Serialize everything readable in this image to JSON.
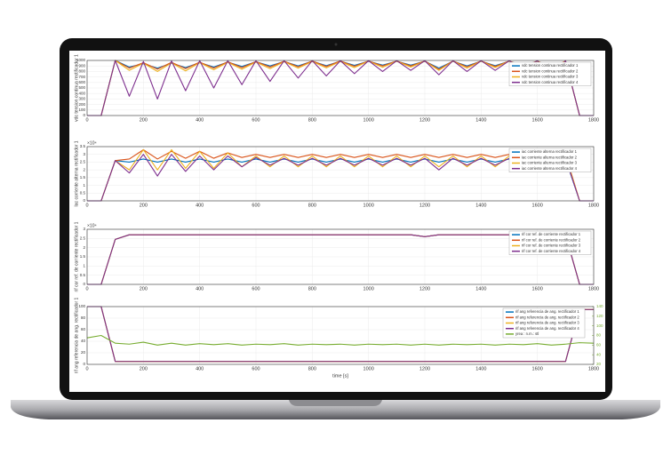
{
  "chart_data": [
    {
      "type": "line",
      "ylabel": "vdc tension continua rectificador 1",
      "x": [
        0,
        50,
        100,
        150,
        200,
        250,
        300,
        350,
        400,
        450,
        500,
        550,
        600,
        650,
        700,
        750,
        800,
        850,
        900,
        950,
        1000,
        1050,
        1100,
        1150,
        1200,
        1250,
        1300,
        1350,
        1400,
        1450,
        1500,
        1550,
        1600,
        1650,
        1700,
        1750,
        1800
      ],
      "xlim": [
        0,
        1800
      ],
      "xticks": [
        0,
        200,
        400,
        600,
        800,
        1000,
        1200,
        1400,
        1600,
        1800
      ],
      "ylim": [
        0,
        1000
      ],
      "yticks": [
        0,
        100,
        200,
        300,
        400,
        500,
        600,
        700,
        800,
        900,
        1000
      ],
      "grid": true,
      "legend": "upper right",
      "series": [
        {
          "name": "vdc tension continua rectificador 1",
          "color": "#0072bd",
          "values": [
            0,
            0,
            1000,
            880,
            940,
            860,
            950,
            870,
            960,
            880,
            970,
            890,
            975,
            900,
            980,
            900,
            985,
            905,
            985,
            910,
            985,
            915,
            985,
            915,
            985,
            860,
            985,
            900,
            985,
            905,
            985,
            910,
            985,
            880,
            985,
            0,
            0
          ]
        },
        {
          "name": "vdc tension continua rectificador 2",
          "color": "#d95319",
          "values": [
            0,
            0,
            1000,
            860,
            960,
            840,
            965,
            850,
            970,
            860,
            975,
            870,
            980,
            880,
            985,
            885,
            990,
            890,
            990,
            895,
            990,
            900,
            990,
            900,
            990,
            840,
            990,
            885,
            990,
            890,
            990,
            895,
            990,
            860,
            990,
            0,
            0
          ]
        },
        {
          "name": "vdc tension continua rectificador 3",
          "color": "#edb120",
          "values": [
            0,
            0,
            1000,
            820,
            950,
            800,
            955,
            810,
            960,
            830,
            965,
            840,
            970,
            850,
            975,
            860,
            980,
            865,
            980,
            870,
            985,
            875,
            985,
            880,
            985,
            820,
            985,
            860,
            985,
            870,
            985,
            875,
            985,
            840,
            985,
            0,
            0
          ]
        },
        {
          "name": "vdc tension continua rectificador 4",
          "color": "#7e2f8e",
          "values": [
            0,
            0,
            1000,
            350,
            980,
            300,
            990,
            450,
            995,
            500,
            995,
            560,
            995,
            620,
            995,
            680,
            995,
            720,
            995,
            760,
            995,
            800,
            995,
            820,
            995,
            740,
            995,
            800,
            995,
            820,
            995,
            840,
            995,
            700,
            995,
            0,
            0
          ]
        }
      ]
    },
    {
      "type": "line",
      "ylabel": "Iac corriente alterna rectificador 1",
      "y_exponent": "×10⁴",
      "x": [
        0,
        50,
        100,
        150,
        200,
        250,
        300,
        350,
        400,
        450,
        500,
        550,
        600,
        650,
        700,
        750,
        800,
        850,
        900,
        950,
        1000,
        1050,
        1100,
        1150,
        1200,
        1250,
        1300,
        1350,
        1400,
        1450,
        1500,
        1550,
        1600,
        1650,
        1700,
        1750,
        1800
      ],
      "xlim": [
        0,
        1800
      ],
      "xticks": [
        0,
        200,
        400,
        600,
        800,
        1000,
        1200,
        1400,
        1600,
        1800
      ],
      "ylim": [
        0,
        3.5
      ],
      "yticks": [
        0,
        0.5,
        1,
        1.5,
        2,
        2.5,
        3,
        3.5
      ],
      "grid": true,
      "legend": "upper right",
      "series": [
        {
          "name": "iac corriente alterna rectificador 1",
          "color": "#0072bd",
          "values": [
            0,
            0,
            2.6,
            2.5,
            2.7,
            2.5,
            2.7,
            2.5,
            2.7,
            2.5,
            2.7,
            2.5,
            2.7,
            2.5,
            2.7,
            2.5,
            2.7,
            2.5,
            2.7,
            2.5,
            2.7,
            2.5,
            2.7,
            2.5,
            2.7,
            2.5,
            2.7,
            2.5,
            2.7,
            2.5,
            2.7,
            2.5,
            2.7,
            2.5,
            2.7,
            0,
            0
          ]
        },
        {
          "name": "iac corriente alterna rectificador 2",
          "color": "#d95319",
          "values": [
            0,
            0,
            2.6,
            2.7,
            3.3,
            2.7,
            3.2,
            2.75,
            3.2,
            2.75,
            3.1,
            2.8,
            3.0,
            2.8,
            3.0,
            2.8,
            3.0,
            2.8,
            3.0,
            2.8,
            3.0,
            2.8,
            3.0,
            2.8,
            3.0,
            2.8,
            3.0,
            2.8,
            3.0,
            2.8,
            3.0,
            2.8,
            3.0,
            2.8,
            3.0,
            0,
            0
          ]
        },
        {
          "name": "iac corriente alterna rectificador 3",
          "color": "#edb120",
          "values": [
            0,
            0,
            2.6,
            2.0,
            3.3,
            2.0,
            3.3,
            2.1,
            3.2,
            2.1,
            3.1,
            2.2,
            2.9,
            2.2,
            2.9,
            2.2,
            2.9,
            2.2,
            2.9,
            2.2,
            2.9,
            2.2,
            2.9,
            2.2,
            2.9,
            2.2,
            2.9,
            2.2,
            2.9,
            2.2,
            2.9,
            2.2,
            2.9,
            2.2,
            2.9,
            0,
            0
          ]
        },
        {
          "name": "iac corriente alterna rectificador 4",
          "color": "#7e2f8e",
          "values": [
            0,
            0,
            2.6,
            1.8,
            3.0,
            1.6,
            3.0,
            1.9,
            2.9,
            2.0,
            2.9,
            2.2,
            2.8,
            2.3,
            2.75,
            2.3,
            2.75,
            2.3,
            2.75,
            2.3,
            2.75,
            2.3,
            2.75,
            2.3,
            2.75,
            2.0,
            2.75,
            2.3,
            2.75,
            2.3,
            2.75,
            2.3,
            2.75,
            2.3,
            2.75,
            0,
            0
          ]
        }
      ]
    },
    {
      "type": "line",
      "ylabel": "rif cor ref. de corriente rectificador 1",
      "y_exponent": "×10⁴",
      "x": [
        0,
        50,
        100,
        150,
        200,
        250,
        300,
        350,
        400,
        450,
        500,
        550,
        600,
        650,
        700,
        750,
        800,
        850,
        900,
        950,
        1000,
        1050,
        1100,
        1150,
        1200,
        1250,
        1300,
        1350,
        1400,
        1450,
        1500,
        1550,
        1600,
        1650,
        1700,
        1750,
        1800
      ],
      "xlim": [
        0,
        1800
      ],
      "xticks": [
        0,
        200,
        400,
        600,
        800,
        1000,
        1200,
        1400,
        1600,
        1800
      ],
      "ylim": [
        0,
        3
      ],
      "yticks": [
        0,
        0.5,
        1,
        1.5,
        2,
        2.5,
        3
      ],
      "grid": true,
      "legend": "upper right",
      "series": [
        {
          "name": "rif cor ref. de corriente rectificador 1",
          "color": "#0072bd",
          "values": [
            0,
            0,
            2.45,
            2.7,
            2.7,
            2.7,
            2.7,
            2.7,
            2.7,
            2.7,
            2.7,
            2.7,
            2.7,
            2.7,
            2.7,
            2.7,
            2.7,
            2.7,
            2.7,
            2.7,
            2.7,
            2.7,
            2.7,
            2.7,
            2.6,
            2.7,
            2.7,
            2.7,
            2.7,
            2.7,
            2.7,
            2.7,
            2.7,
            2.7,
            2.7,
            0,
            0
          ]
        },
        {
          "name": "rif cor ref. de corriente rectificador 2",
          "color": "#d95319",
          "values": [
            0,
            0,
            2.45,
            2.7,
            2.7,
            2.7,
            2.7,
            2.7,
            2.7,
            2.7,
            2.7,
            2.7,
            2.7,
            2.7,
            2.7,
            2.7,
            2.7,
            2.7,
            2.7,
            2.7,
            2.7,
            2.7,
            2.7,
            2.7,
            2.6,
            2.7,
            2.7,
            2.7,
            2.7,
            2.7,
            2.7,
            2.7,
            2.7,
            2.7,
            2.7,
            0,
            0
          ]
        },
        {
          "name": "rif cor ref. de corriente rectificador 3",
          "color": "#edb120",
          "values": [
            0,
            0,
            2.45,
            2.7,
            2.7,
            2.7,
            2.7,
            2.7,
            2.7,
            2.7,
            2.7,
            2.7,
            2.7,
            2.7,
            2.7,
            2.7,
            2.7,
            2.7,
            2.7,
            2.7,
            2.7,
            2.7,
            2.7,
            2.7,
            2.6,
            2.7,
            2.7,
            2.7,
            2.7,
            2.7,
            2.7,
            2.7,
            2.7,
            2.7,
            2.7,
            0,
            0
          ]
        },
        {
          "name": "rif cor ref. de corriente rectificador 4",
          "color": "#7e2f8e",
          "values": [
            0,
            0,
            2.45,
            2.7,
            2.7,
            2.7,
            2.7,
            2.7,
            2.7,
            2.7,
            2.7,
            2.7,
            2.7,
            2.7,
            2.7,
            2.7,
            2.7,
            2.7,
            2.7,
            2.7,
            2.7,
            2.7,
            2.7,
            2.7,
            2.6,
            2.7,
            2.7,
            2.7,
            2.7,
            2.7,
            2.7,
            2.7,
            2.7,
            2.7,
            2.7,
            0,
            0
          ]
        }
      ]
    },
    {
      "type": "line",
      "ylabel": "rif ang referencia de ang. rectificador 1",
      "xlabel": "time [s]",
      "x": [
        0,
        50,
        100,
        150,
        200,
        250,
        300,
        350,
        400,
        450,
        500,
        550,
        600,
        650,
        700,
        750,
        800,
        850,
        900,
        950,
        1000,
        1050,
        1100,
        1150,
        1200,
        1250,
        1300,
        1350,
        1400,
        1450,
        1500,
        1550,
        1600,
        1650,
        1700,
        1750,
        1800
      ],
      "xlim": [
        0,
        1800
      ],
      "xticks": [
        0,
        200,
        400,
        600,
        800,
        1000,
        1200,
        1400,
        1600,
        1800
      ],
      "ylim": [
        0,
        100
      ],
      "yticks": [
        0,
        20,
        40,
        60,
        80,
        100
      ],
      "y2lim": [
        20,
        140
      ],
      "y2ticks": [
        20,
        40,
        60,
        80,
        100,
        120,
        140
      ],
      "y2color": "#77ac30",
      "grid": true,
      "legend": "upper right",
      "series": [
        {
          "name": "rif ang referencia de ang. rectificador 1",
          "color": "#0072bd",
          "values": [
            100,
            100,
            5,
            5,
            5,
            5,
            5,
            5,
            5,
            5,
            5,
            5,
            5,
            5,
            5,
            5,
            5,
            5,
            5,
            5,
            5,
            5,
            5,
            5,
            5,
            5,
            5,
            5,
            5,
            5,
            5,
            5,
            5,
            5,
            5,
            95,
            95
          ]
        },
        {
          "name": "rif ang referencia de ang. rectificador 2",
          "color": "#d95319",
          "values": [
            100,
            100,
            5,
            5,
            5,
            5,
            5,
            5,
            5,
            5,
            5,
            5,
            5,
            5,
            5,
            5,
            5,
            5,
            5,
            5,
            5,
            5,
            5,
            5,
            5,
            5,
            5,
            5,
            5,
            5,
            5,
            5,
            5,
            5,
            5,
            95,
            95
          ]
        },
        {
          "name": "rif ang referencia de ang. rectificador 3",
          "color": "#edb120",
          "values": [
            100,
            100,
            5,
            5,
            5,
            5,
            5,
            5,
            5,
            5,
            5,
            5,
            5,
            5,
            5,
            5,
            5,
            5,
            5,
            5,
            5,
            5,
            5,
            5,
            5,
            5,
            5,
            5,
            5,
            5,
            5,
            5,
            5,
            5,
            5,
            95,
            95
          ]
        },
        {
          "name": "rif ang referencia de ang. rectificador 4",
          "color": "#7e2f8e",
          "values": [
            100,
            100,
            5,
            5,
            5,
            5,
            5,
            5,
            5,
            5,
            5,
            5,
            5,
            5,
            5,
            5,
            5,
            5,
            5,
            5,
            5,
            5,
            5,
            5,
            5,
            5,
            5,
            5,
            5,
            5,
            5,
            5,
            5,
            5,
            5,
            95,
            95
          ]
        },
        {
          "name": "yrea : n.m.: stl",
          "color": "#77ac30",
          "axis": "y2",
          "values": [
            75,
            80,
            64,
            62,
            66,
            60,
            64,
            60,
            63,
            61,
            63,
            60,
            62,
            61,
            63,
            60,
            62,
            61,
            62,
            60,
            62,
            61,
            62,
            60,
            62,
            60,
            62,
            61,
            62,
            60,
            62,
            61,
            63,
            60,
            62,
            65,
            64
          ]
        }
      ]
    }
  ]
}
